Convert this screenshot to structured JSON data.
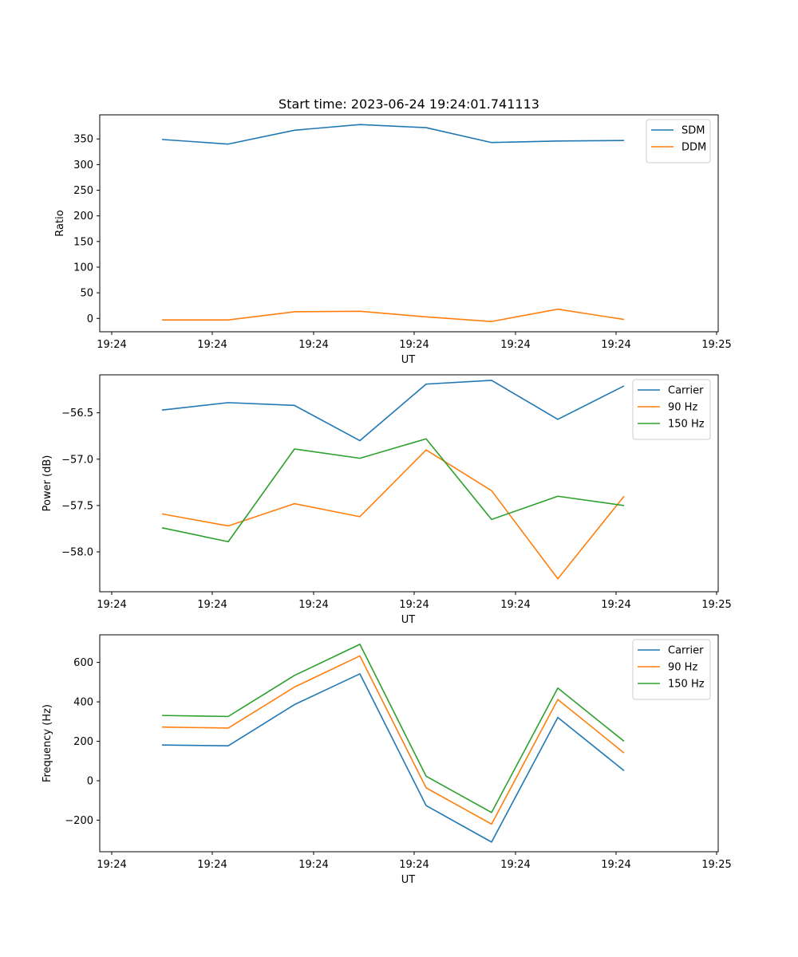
{
  "figure_title": "Start time: 2023-06-24 19:24:01.741113",
  "chart_data": [
    {
      "type": "line",
      "title": "Start time: 2023-06-24 19:24:01.741113",
      "xlabel": "UT",
      "ylabel": "Ratio",
      "x_ticks": [
        "19:24",
        "19:24",
        "19:24",
        "19:24",
        "19:24",
        "19:24",
        "19:25"
      ],
      "y_ticks": [
        0,
        50,
        100,
        150,
        200,
        250,
        300,
        350
      ],
      "ylim": [
        -26,
        397
      ],
      "legend_position": "top-right",
      "grid": false,
      "series": [
        {
          "name": "SDM",
          "color": "#1f77b4",
          "values": [
            349,
            340,
            367,
            378,
            372,
            343,
            346,
            347
          ]
        },
        {
          "name": "DDM",
          "color": "#ff7f0e",
          "values": [
            -3,
            -3,
            13,
            14,
            3,
            -6,
            18,
            -2
          ]
        }
      ]
    },
    {
      "type": "line",
      "xlabel": "UT",
      "ylabel": "Power (dB)",
      "x_ticks": [
        "19:24",
        "19:24",
        "19:24",
        "19:24",
        "19:24",
        "19:24",
        "19:25"
      ],
      "y_ticks": [
        "−58.0",
        "−57.5",
        "−57.0",
        "−56.5"
      ],
      "y_tick_values": [
        -58.0,
        -57.5,
        -57.0,
        -56.5
      ],
      "ylim": [
        -58.43,
        -56.09
      ],
      "legend_position": "top-right",
      "grid": false,
      "series": [
        {
          "name": "Carrier",
          "color": "#1f77b4",
          "values": [
            -56.47,
            -56.39,
            -56.42,
            -56.8,
            -56.19,
            -56.15,
            -56.57,
            -56.21
          ]
        },
        {
          "name": "90 Hz",
          "color": "#ff7f0e",
          "values": [
            -57.59,
            -57.72,
            -57.48,
            -57.62,
            -56.9,
            -57.34,
            -58.29,
            -57.4
          ]
        },
        {
          "name": "150 Hz",
          "color": "#2ca02c",
          "values": [
            -57.74,
            -57.89,
            -56.89,
            -56.99,
            -56.78,
            -57.65,
            -57.4,
            -57.5
          ]
        }
      ]
    },
    {
      "type": "line",
      "xlabel": "UT",
      "ylabel": "Frequency (Hz)",
      "x_ticks": [
        "19:24",
        "19:24",
        "19:24",
        "19:24",
        "19:24",
        "19:24",
        "19:25"
      ],
      "y_ticks": [
        "−200",
        "0",
        "200",
        "400",
        "600"
      ],
      "y_tick_values": [
        -200,
        0,
        200,
        400,
        600
      ],
      "ylim": [
        -360,
        740
      ],
      "legend_position": "top-right",
      "grid": false,
      "series": [
        {
          "name": "Carrier",
          "color": "#1f77b4",
          "values": [
            181,
            177,
            386,
            542,
            -126,
            -311,
            321,
            51
          ]
        },
        {
          "name": "90 Hz",
          "color": "#ff7f0e",
          "values": [
            272,
            267,
            475,
            633,
            -36,
            -220,
            412,
            141
          ]
        },
        {
          "name": "150 Hz",
          "color": "#2ca02c",
          "values": [
            331,
            326,
            534,
            692,
            23,
            -161,
            470,
            200
          ]
        }
      ]
    }
  ]
}
